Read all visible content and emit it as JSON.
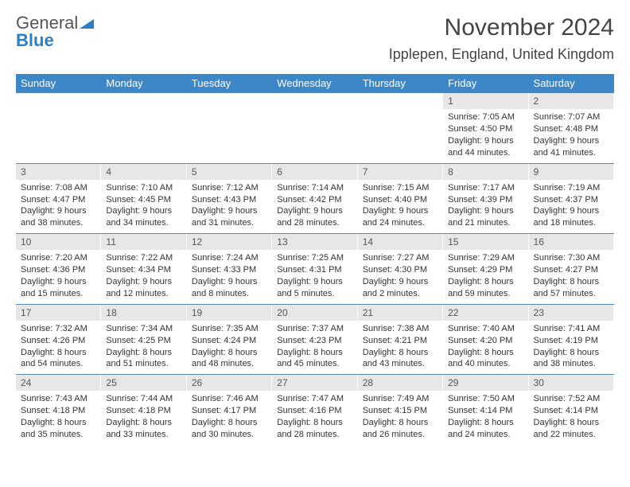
{
  "logo": {
    "text1": "General",
    "text2": "Blue"
  },
  "title": "November 2024",
  "location": "Ipplepen, England, United Kingdom",
  "colors": {
    "header_bg": "#3b87c8",
    "header_text": "#ffffff",
    "daynum_bg": "#e7e7e7",
    "border": "#5a88af",
    "logo_blue": "#2b7fc4"
  },
  "weekdays": [
    "Sunday",
    "Monday",
    "Tuesday",
    "Wednesday",
    "Thursday",
    "Friday",
    "Saturday"
  ],
  "weeks": [
    [
      null,
      null,
      null,
      null,
      null,
      {
        "n": "1",
        "sunrise": "7:05 AM",
        "sunset": "4:50 PM",
        "day_h": "9",
        "day_m": "44"
      },
      {
        "n": "2",
        "sunrise": "7:07 AM",
        "sunset": "4:48 PM",
        "day_h": "9",
        "day_m": "41"
      }
    ],
    [
      {
        "n": "3",
        "sunrise": "7:08 AM",
        "sunset": "4:47 PM",
        "day_h": "9",
        "day_m": "38"
      },
      {
        "n": "4",
        "sunrise": "7:10 AM",
        "sunset": "4:45 PM",
        "day_h": "9",
        "day_m": "34"
      },
      {
        "n": "5",
        "sunrise": "7:12 AM",
        "sunset": "4:43 PM",
        "day_h": "9",
        "day_m": "31"
      },
      {
        "n": "6",
        "sunrise": "7:14 AM",
        "sunset": "4:42 PM",
        "day_h": "9",
        "day_m": "28"
      },
      {
        "n": "7",
        "sunrise": "7:15 AM",
        "sunset": "4:40 PM",
        "day_h": "9",
        "day_m": "24"
      },
      {
        "n": "8",
        "sunrise": "7:17 AM",
        "sunset": "4:39 PM",
        "day_h": "9",
        "day_m": "21"
      },
      {
        "n": "9",
        "sunrise": "7:19 AM",
        "sunset": "4:37 PM",
        "day_h": "9",
        "day_m": "18"
      }
    ],
    [
      {
        "n": "10",
        "sunrise": "7:20 AM",
        "sunset": "4:36 PM",
        "day_h": "9",
        "day_m": "15"
      },
      {
        "n": "11",
        "sunrise": "7:22 AM",
        "sunset": "4:34 PM",
        "day_h": "9",
        "day_m": "12"
      },
      {
        "n": "12",
        "sunrise": "7:24 AM",
        "sunset": "4:33 PM",
        "day_h": "9",
        "day_m": "8"
      },
      {
        "n": "13",
        "sunrise": "7:25 AM",
        "sunset": "4:31 PM",
        "day_h": "9",
        "day_m": "5"
      },
      {
        "n": "14",
        "sunrise": "7:27 AM",
        "sunset": "4:30 PM",
        "day_h": "9",
        "day_m": "2"
      },
      {
        "n": "15",
        "sunrise": "7:29 AM",
        "sunset": "4:29 PM",
        "day_h": "8",
        "day_m": "59"
      },
      {
        "n": "16",
        "sunrise": "7:30 AM",
        "sunset": "4:27 PM",
        "day_h": "8",
        "day_m": "57"
      }
    ],
    [
      {
        "n": "17",
        "sunrise": "7:32 AM",
        "sunset": "4:26 PM",
        "day_h": "8",
        "day_m": "54"
      },
      {
        "n": "18",
        "sunrise": "7:34 AM",
        "sunset": "4:25 PM",
        "day_h": "8",
        "day_m": "51"
      },
      {
        "n": "19",
        "sunrise": "7:35 AM",
        "sunset": "4:24 PM",
        "day_h": "8",
        "day_m": "48"
      },
      {
        "n": "20",
        "sunrise": "7:37 AM",
        "sunset": "4:23 PM",
        "day_h": "8",
        "day_m": "45"
      },
      {
        "n": "21",
        "sunrise": "7:38 AM",
        "sunset": "4:21 PM",
        "day_h": "8",
        "day_m": "43"
      },
      {
        "n": "22",
        "sunrise": "7:40 AM",
        "sunset": "4:20 PM",
        "day_h": "8",
        "day_m": "40"
      },
      {
        "n": "23",
        "sunrise": "7:41 AM",
        "sunset": "4:19 PM",
        "day_h": "8",
        "day_m": "38"
      }
    ],
    [
      {
        "n": "24",
        "sunrise": "7:43 AM",
        "sunset": "4:18 PM",
        "day_h": "8",
        "day_m": "35"
      },
      {
        "n": "25",
        "sunrise": "7:44 AM",
        "sunset": "4:18 PM",
        "day_h": "8",
        "day_m": "33"
      },
      {
        "n": "26",
        "sunrise": "7:46 AM",
        "sunset": "4:17 PM",
        "day_h": "8",
        "day_m": "30"
      },
      {
        "n": "27",
        "sunrise": "7:47 AM",
        "sunset": "4:16 PM",
        "day_h": "8",
        "day_m": "28"
      },
      {
        "n": "28",
        "sunrise": "7:49 AM",
        "sunset": "4:15 PM",
        "day_h": "8",
        "day_m": "26"
      },
      {
        "n": "29",
        "sunrise": "7:50 AM",
        "sunset": "4:14 PM",
        "day_h": "8",
        "day_m": "24"
      },
      {
        "n": "30",
        "sunrise": "7:52 AM",
        "sunset": "4:14 PM",
        "day_h": "8",
        "day_m": "22"
      }
    ]
  ]
}
